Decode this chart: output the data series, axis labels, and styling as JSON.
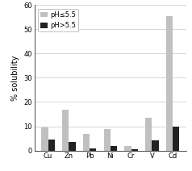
{
  "categories": [
    "Cu",
    "Zn",
    "Pb",
    "Ni",
    "Cr",
    "V",
    "Cd"
  ],
  "series": [
    {
      "label": "pH≤5.5",
      "color": "#c0c0c0",
      "values": [
        9.5,
        17.0,
        7.0,
        9.0,
        1.8,
        13.5,
        55.5
      ]
    },
    {
      "label": "pH>5.5",
      "color": "#222222",
      "values": [
        4.5,
        3.5,
        0.7,
        1.7,
        0.4,
        4.2,
        10.0
      ]
    }
  ],
  "ylabel": "% solubility",
  "ylim": [
    0,
    60
  ],
  "yticks": [
    0,
    10,
    20,
    30,
    40,
    50,
    60
  ],
  "bar_width": 0.32,
  "legend_fontsize": 6.0,
  "tick_fontsize": 6.0,
  "ylabel_fontsize": 7.0,
  "background_color": "#ffffff",
  "grid_color": "#d0d0d0"
}
